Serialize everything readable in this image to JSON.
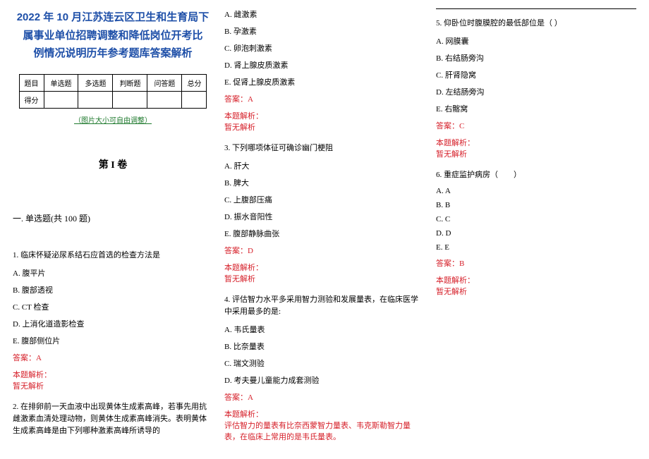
{
  "title_lines": [
    "2022 年 10 月江苏连云区卫生和生育局下",
    "属事业单位招聘调整和降低岗位开考比",
    "例情况说明历年参考题库答案解析"
  ],
  "score_table": {
    "header": [
      "题目",
      "单选题",
      "多选题",
      "判断题",
      "问答题",
      "总分"
    ],
    "row_label": "得分"
  },
  "resize_note": "（图片大小可自由调整）",
  "volume_label": "第 I 卷",
  "section_label": "一. 单选题(共 100 题)",
  "questions": [
    {
      "num": "1.",
      "stem": "临床怀疑泌尿系结石应首选的检查方法是",
      "options": [
        "A. 腹平片",
        "B. 腹部透视",
        "C. CT 检查",
        "D. 上消化道造影检查",
        "E. 腹部侧位片"
      ],
      "answer": "答案：A",
      "explain_label": "本题解析：",
      "explain": "暂无解析"
    },
    {
      "num": "2.",
      "stem": "在排卵前一天血液中出现黄体生成素高峰，若事先用抗雌激素血清处理动物，则黄体生成素高峰消失。表明黄体生成素高峰是由下列哪种激素高峰所诱导的",
      "options": [
        "A. 雌激素",
        "B. 孕激素",
        "C. 卵泡刺激素",
        "D. 肾上腺皮质激素",
        "E. 促肾上腺皮质激素"
      ],
      "answer": "答案：A",
      "explain_label": "本题解析：",
      "explain": "暂无解析"
    },
    {
      "num": "3.",
      "stem": "下列哪项体征可确诊幽门梗阻",
      "options": [
        "A. 肝大",
        "B. 脾大",
        "C. 上腹部压痛",
        "D. 振水音阳性",
        "E. 腹部静脉曲张"
      ],
      "answer": "答案：D",
      "explain_label": "本题解析：",
      "explain": "暂无解析"
    },
    {
      "num": "4.",
      "stem": "评估智力水平多采用智力测验和发展量表，在临床医学中采用最多的是:",
      "options": [
        "A. 韦氏量表",
        "B. 比奈量表",
        "C. 瑞文测验",
        "D. 考夫曼儿童能力成套测验"
      ],
      "answer": "答案：A",
      "explain_label": "本题解析：",
      "explain": "评估智力的量表有比奈西蒙智力量表、韦克斯勒智力量表，在临床上常用的是韦氏量表。"
    },
    {
      "num": "5.",
      "stem": "仰卧位时腹膜腔的最低部位是（ ）",
      "options": [
        "A. 网膜囊",
        "B. 右结肠旁沟",
        "C. 肝肾隐窝",
        "D. 左结肠旁沟",
        "E. 右髂窝"
      ],
      "answer": "答案：C",
      "explain_label": "本题解析：",
      "explain": "暂无解析"
    },
    {
      "num": "6.",
      "stem": "重症监护病房（　　）",
      "options": [
        "A. A",
        "B. B",
        "C. C",
        "D. D",
        "E. E"
      ],
      "answer": "答案：B",
      "explain_label": "本题解析：",
      "explain": "暂无解析"
    }
  ]
}
